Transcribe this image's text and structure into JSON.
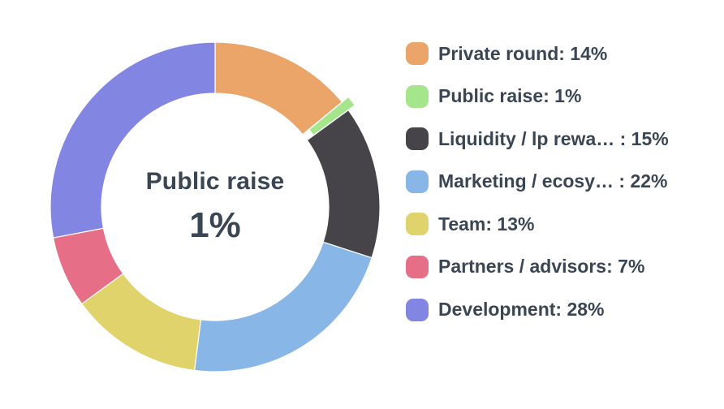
{
  "colors": {
    "background": "#ffffff",
    "text": "#3a4654",
    "slice_separator": "#ffffff"
  },
  "chart_data": {
    "type": "pie",
    "subtype": "donut",
    "direction": "clockwise",
    "start_angle_deg": 0,
    "legend_position": "right",
    "categories": [
      "Private round",
      "Public raise",
      "Liquidity / lp rewa…",
      "Marketing / ecosy…",
      "Team",
      "Partners / advisors",
      "Development"
    ],
    "values": [
      14,
      1,
      15,
      22,
      13,
      7,
      28
    ],
    "unit": "%",
    "slice_colors": [
      "#eca569",
      "#a5e68c",
      "#464448",
      "#87b6e7",
      "#e0d36b",
      "#e66e87",
      "#8286e2"
    ],
    "selected_index": 1,
    "legend_labels": [
      "Private round: 14%",
      "Public raise: 1%",
      "Liquidity / lp rewa… : 15%",
      "Marketing / ecosy… : 22%",
      "Team: 13%",
      "Partners / advisors: 7%",
      "Development: 28%"
    ],
    "center_label": {
      "title": "Public raise",
      "value": "1%"
    }
  }
}
